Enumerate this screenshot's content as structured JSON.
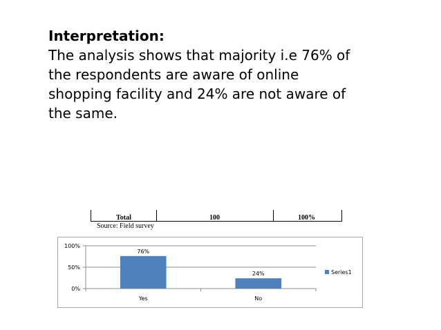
{
  "interpretation": {
    "heading": "Interpretation:",
    "line1": "The analysis shows that majority i.e 76% of",
    "line2": "the respondents are aware of online",
    "line3": "shopping facility and 24% are not aware of",
    "line4": "the same."
  },
  "table_fragment": {
    "col1": "Total",
    "col2": "100",
    "col3": "100%",
    "source": "Source: Field survey"
  },
  "colors": {
    "bar": "#4f81bd",
    "grid": "#8c8c8c"
  },
  "chart_data": {
    "type": "bar",
    "title": "",
    "xlabel": "",
    "ylabel": "",
    "categories": [
      "Yes",
      "No"
    ],
    "series": [
      {
        "name": "Series1",
        "values": [
          76,
          24
        ]
      }
    ],
    "data_labels": [
      "76%",
      "24%"
    ],
    "yticks": [
      {
        "value": 0,
        "label": "0%"
      },
      {
        "value": 50,
        "label": "50%"
      },
      {
        "value": 100,
        "label": "100%"
      }
    ],
    "ylim": [
      0,
      100
    ],
    "legend_position": "right",
    "grid": true
  }
}
